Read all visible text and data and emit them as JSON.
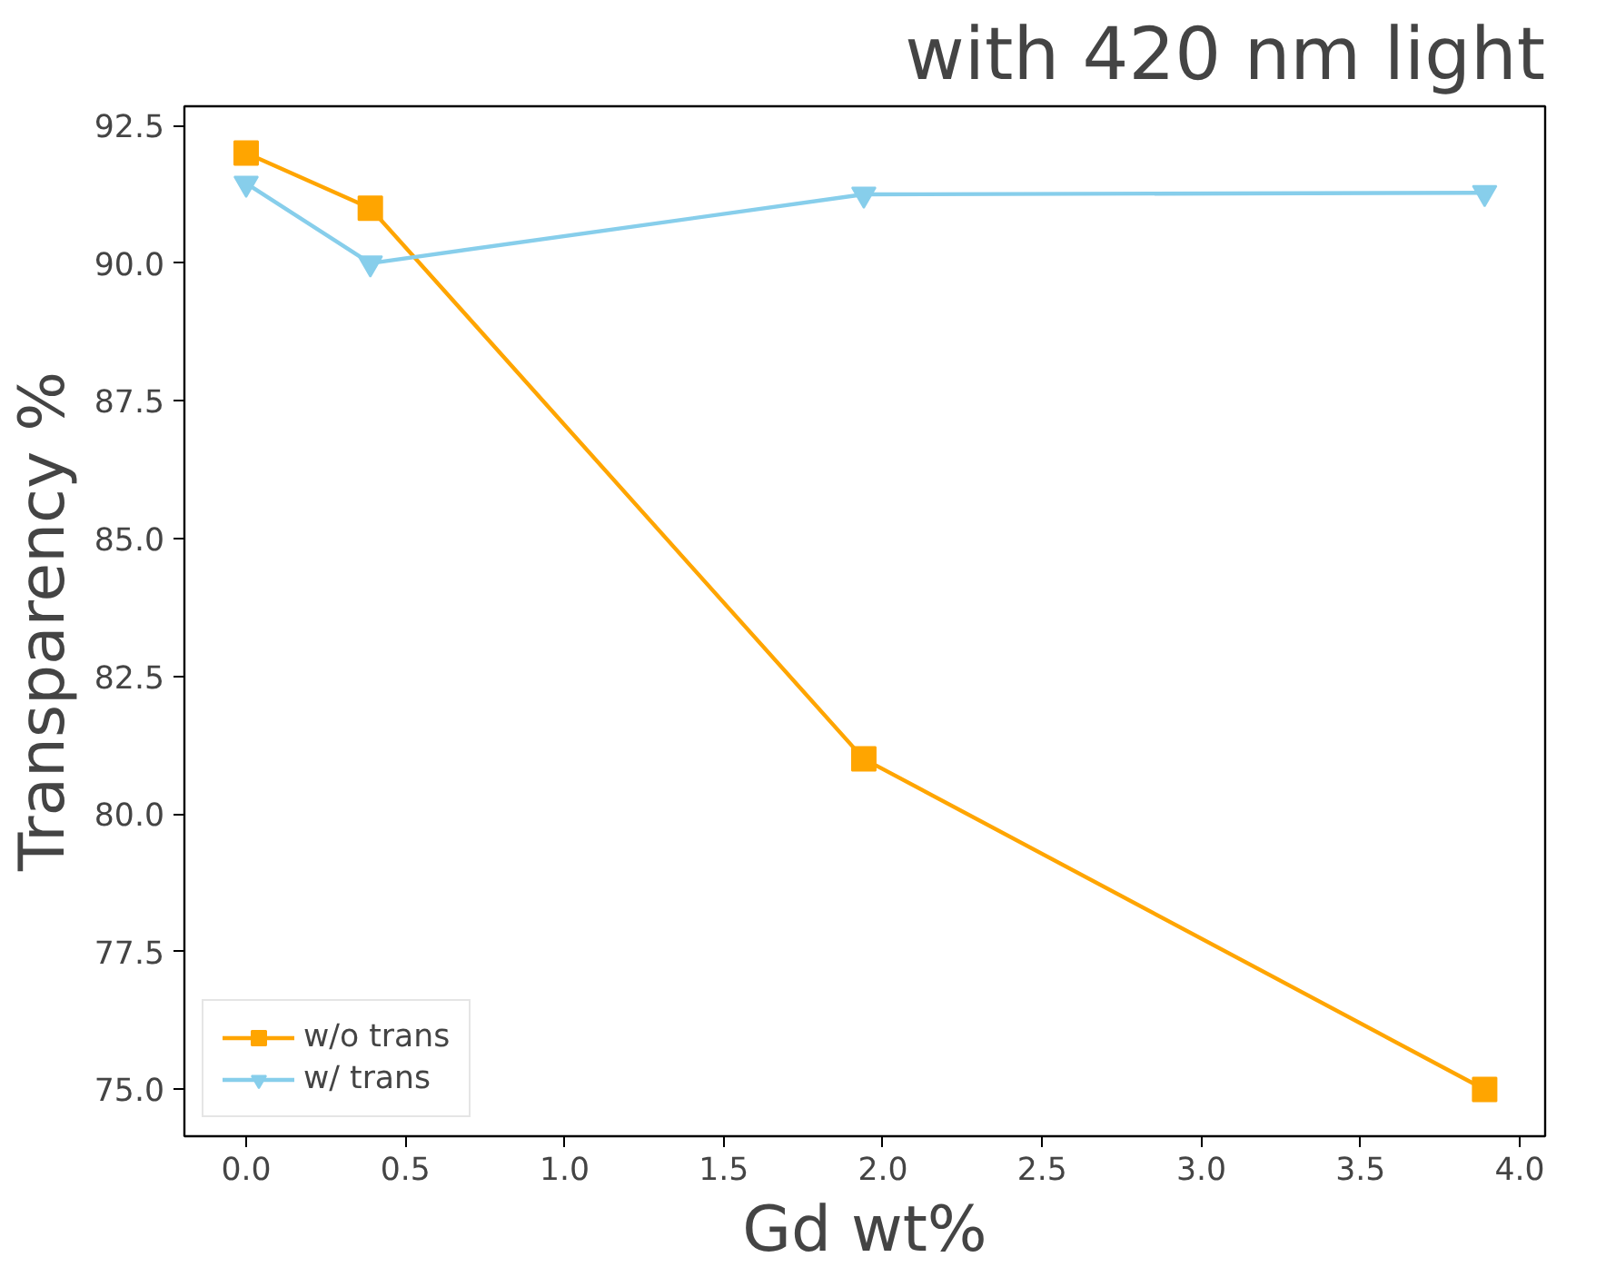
{
  "chart_data": {
    "type": "line",
    "title": "with 420 nm light",
    "xlabel": "Gd wt%",
    "ylabel": "Transparency %",
    "series": [
      {
        "name": "w/o trans",
        "color": "#ffa500",
        "marker": "square",
        "x": [
          0,
          0.39,
          1.94,
          3.89
        ],
        "values": [
          92,
          91,
          81,
          75
        ]
      },
      {
        "name": "w/ trans",
        "color": "#87ceeb",
        "marker": "triangle",
        "x": [
          0,
          0.39,
          1.94,
          3.89
        ],
        "values": [
          91.45,
          90.0,
          91.25,
          91.28
        ]
      }
    ],
    "xlim": [
      -0.194,
      4.08
    ],
    "ylim": [
      74.15,
      92.85
    ],
    "xticks": [
      {
        "value": 0,
        "label": "0.0"
      },
      {
        "value": 0.5,
        "label": "0.5"
      },
      {
        "value": 1,
        "label": "1.0"
      },
      {
        "value": 1.5,
        "label": "1.5"
      },
      {
        "value": 2,
        "label": "2.0"
      },
      {
        "value": 2.5,
        "label": "2.5"
      },
      {
        "value": 3,
        "label": "3.0"
      },
      {
        "value": 3.5,
        "label": "3.5"
      },
      {
        "value": 4,
        "label": "4.0"
      }
    ],
    "yticks": [
      {
        "value": 75,
        "label": "75.0"
      },
      {
        "value": 77.5,
        "label": "77.5"
      },
      {
        "value": 80,
        "label": "80.0"
      },
      {
        "value": 82.5,
        "label": "82.5"
      },
      {
        "value": 85,
        "label": "85.0"
      },
      {
        "value": 87.5,
        "label": "87.5"
      },
      {
        "value": 90,
        "label": "90.0"
      },
      {
        "value": 92.5,
        "label": "92.5"
      }
    ],
    "grid": false,
    "legend": "bottom left",
    "line_style": "solid"
  }
}
